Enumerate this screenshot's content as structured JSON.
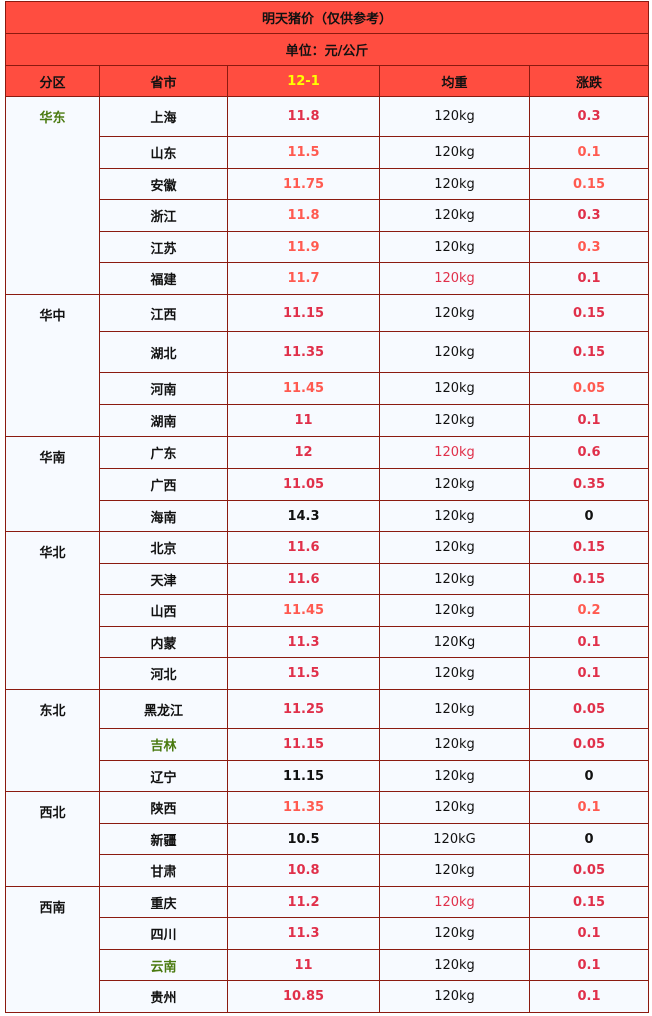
{
  "title": "明天猪价（仅供参考）",
  "unit": "单位：元/公斤",
  "columns": [
    "分区",
    "省市",
    "12-1",
    "均重",
    "涨跌"
  ],
  "colors": {
    "header_bg": "#ff4d40",
    "border": "#8b1a10",
    "date_header": "#ffff00",
    "crimson": "#e0304a",
    "coral": "#ff5a50",
    "green": "#4a7a10",
    "row_bg": "#f7faff"
  },
  "regions": [
    {
      "name": "华东",
      "color": "#4a7a10",
      "rows": [
        {
          "province": "上海",
          "price": "11.8",
          "weight": "120kg",
          "change": "0.3",
          "pc": "#e0304a",
          "cc": "#e0304a",
          "h": 40
        },
        {
          "province": "山东",
          "price": "11.5",
          "weight": "120kg",
          "change": "0.1",
          "pc": "#ff5a50",
          "cc": "#ff5a50",
          "h": 32
        },
        {
          "province": "安徽",
          "price": "11.75",
          "weight": "120kg",
          "change": "0.15",
          "pc": "#ff5a50",
          "cc": "#ff5a50",
          "h": 31
        },
        {
          "province": "浙江",
          "price": "11.8",
          "weight": "120kg",
          "change": "0.3",
          "pc": "#ff5a50",
          "cc": "#e0304a",
          "h": 32
        },
        {
          "province": "江苏",
          "price": "11.9",
          "weight": "120kg",
          "change": "0.3",
          "pc": "#ff5a50",
          "cc": "#ff5a50",
          "h": 31
        },
        {
          "province": "福建",
          "price": "11.7",
          "weight": "120kg",
          "change": "0.1",
          "pc": "#ff5a50",
          "cc": "#e0304a",
          "wc": "#e0304a",
          "h": 32
        }
      ]
    },
    {
      "name": "华中",
      "color": "#111111",
      "rows": [
        {
          "province": "江西",
          "price": "11.15",
          "weight": "120kg",
          "change": "0.15",
          "pc": "#e0304a",
          "cc": "#e0304a",
          "h": 37
        },
        {
          "province": "湖北",
          "price": "11.35",
          "weight": "120kg",
          "change": "0.15",
          "pc": "#e0304a",
          "cc": "#e0304a",
          "h": 41
        },
        {
          "province": "河南",
          "price": "11.45",
          "weight": "120kg",
          "change": "0.05",
          "pc": "#ff5a50",
          "cc": "#ff5a50",
          "h": 32
        },
        {
          "province": "湖南",
          "price": "11",
          "weight": "120kg",
          "change": "0.1",
          "pc": "#e0304a",
          "cc": "#e0304a",
          "h": 32
        }
      ]
    },
    {
      "name": "华南",
      "color": "#111111",
      "rows": [
        {
          "province": "广东",
          "price": "12",
          "weight": "120kg",
          "change": "0.6",
          "pc": "#e0304a",
          "cc": "#e0304a",
          "wc": "#e0304a",
          "h": 32
        },
        {
          "province": "广西",
          "price": "11.05",
          "weight": "120kg",
          "change": "0.35",
          "pc": "#e0304a",
          "cc": "#e0304a",
          "h": 32
        },
        {
          "province": "海南",
          "price": "14.3",
          "weight": "120kg",
          "change": "0",
          "pc": "#111111",
          "cc": "#111111",
          "h": 31
        }
      ]
    },
    {
      "name": "华北",
      "color": "#111111",
      "rows": [
        {
          "province": "北京",
          "price": "11.6",
          "weight": "120kg",
          "change": "0.15",
          "pc": "#e0304a",
          "cc": "#e0304a",
          "h": 32
        },
        {
          "province": "天津",
          "price": "11.6",
          "weight": "120kg",
          "change": "0.15",
          "pc": "#e0304a",
          "cc": "#e0304a",
          "h": 31
        },
        {
          "province": "山西",
          "price": "11.45",
          "weight": "120kg",
          "change": "0.2",
          "pc": "#ff5a50",
          "cc": "#ff5a50",
          "h": 32
        },
        {
          "province": "内蒙",
          "price": "11.3",
          "weight": "120Kg",
          "change": "0.1",
          "pc": "#e0304a",
          "cc": "#e0304a",
          "h": 31
        },
        {
          "province": "河北",
          "price": "11.5",
          "weight": "120kg",
          "change": "0.1",
          "pc": "#e0304a",
          "cc": "#e0304a",
          "h": 32
        }
      ]
    },
    {
      "name": "东北",
      "color": "#111111",
      "rows": [
        {
          "province": "黑龙江",
          "price": "11.25",
          "weight": "120kg",
          "change": "0.05",
          "pc": "#e0304a",
          "cc": "#e0304a",
          "h": 39
        },
        {
          "province": "吉林",
          "price": "11.15",
          "weight": "120kg",
          "change": "0.05",
          "pc": "#e0304a",
          "cc": "#e0304a",
          "prc": "#4a7a10",
          "h": 32
        },
        {
          "province": "辽宁",
          "price": "11.15",
          "weight": "120kg",
          "change": "0",
          "pc": "#111111",
          "cc": "#111111",
          "h": 31
        }
      ]
    },
    {
      "name": "西北",
      "color": "#111111",
      "rows": [
        {
          "province": "陕西",
          "price": "11.35",
          "weight": "120kg",
          "change": "0.1",
          "pc": "#ff5a50",
          "cc": "#ff5a50",
          "h": 32
        },
        {
          "province": "新疆",
          "price": "10.5",
          "weight": "120kG",
          "change": "0",
          "pc": "#111111",
          "cc": "#111111",
          "h": 31
        },
        {
          "province": "甘肃",
          "price": "10.8",
          "weight": "120kg",
          "change": "0.05",
          "pc": "#e0304a",
          "cc": "#e0304a",
          "h": 32
        }
      ]
    },
    {
      "name": "西南",
      "color": "#111111",
      "rows": [
        {
          "province": "重庆",
          "price": "11.2",
          "weight": "120kg",
          "change": "0.15",
          "pc": "#e0304a",
          "cc": "#e0304a",
          "wc": "#e0304a",
          "h": 31
        },
        {
          "province": "四川",
          "price": "11.3",
          "weight": "120kg",
          "change": "0.1",
          "pc": "#e0304a",
          "cc": "#e0304a",
          "h": 32
        },
        {
          "province": "云南",
          "price": "11",
          "weight": "120kg",
          "change": "0.1",
          "pc": "#e0304a",
          "cc": "#e0304a",
          "prc": "#4a7a10",
          "h": 31
        },
        {
          "province": "贵州",
          "price": "10.85",
          "weight": "120kg",
          "change": "0.1",
          "pc": "#e0304a",
          "cc": "#e0304a",
          "h": 32
        }
      ]
    }
  ]
}
